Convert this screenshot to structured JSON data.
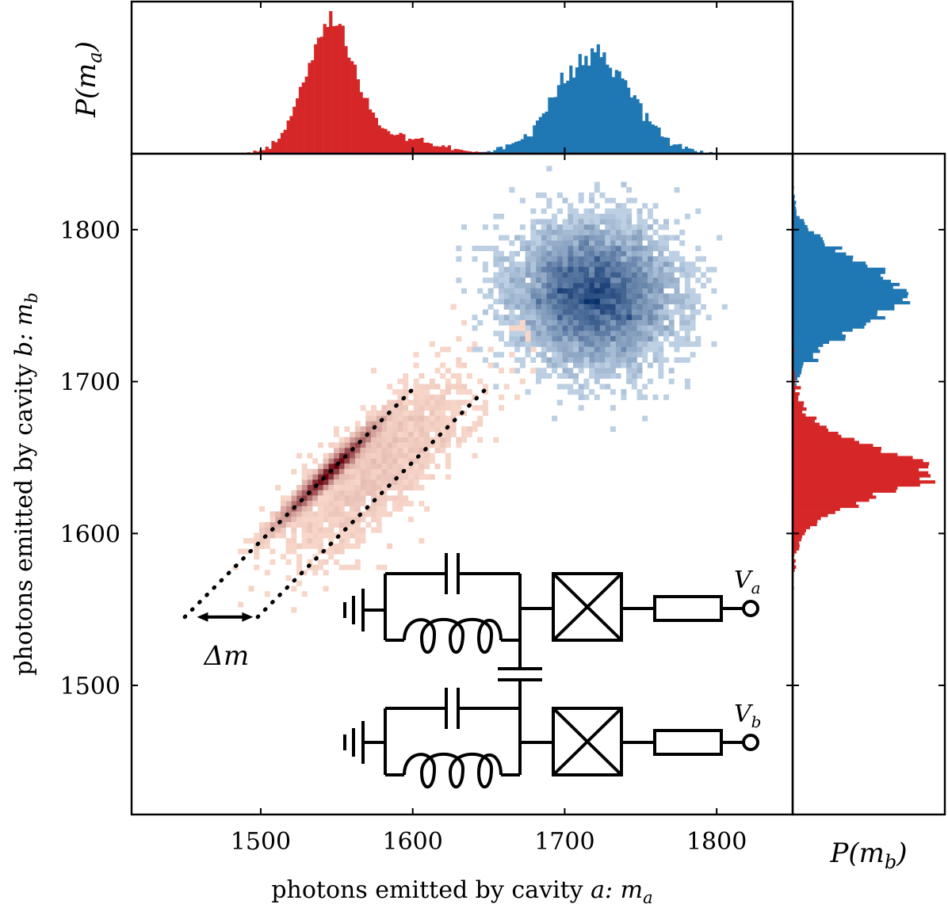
{
  "chart_data": {
    "type": "heatmap",
    "title": "",
    "xlabel": "photons emitted by cavity ",
    "xlabel_math": "a: m",
    "xlabel_sub": "a",
    "ylabel": "photons emitted by cavity ",
    "ylabel_math": "b: m",
    "ylabel_sub": "b",
    "xlim": [
      1415,
      1850
    ],
    "ylim": [
      1415,
      1850
    ],
    "xticks": [
      1500,
      1600,
      1700,
      1800
    ],
    "yticks": [
      1500,
      1600,
      1700,
      1800
    ],
    "series": [
      {
        "name": "red",
        "color": "#d62728",
        "cmap": "Reds",
        "component": "correlated",
        "mean_a": 1545,
        "mean_b": 1640,
        "sd_along": 22,
        "sd_across": 2.6,
        "diagonal_slope": 1.0,
        "weight": 0.78
      },
      {
        "name": "red",
        "color": "#d62728",
        "cmap": "Reds",
        "component": "tail",
        "mean_a": 1580,
        "mean_b": 1645,
        "sd_along": 40,
        "sd_across": 14,
        "weight": 0.22
      },
      {
        "name": "blue",
        "color": "#1f77b4",
        "cmap": "Blues",
        "component": "uncorrelated",
        "mean_a": 1720,
        "mean_b": 1757,
        "sd_a": 25,
        "sd_b": 22,
        "weight": 1.0
      }
    ],
    "top_hist": {
      "ylabel": "P(m",
      "ylabel_sub": "a",
      "ylabel_close": ")",
      "red_peak": 1540,
      "blue_peak": 1722
    },
    "right_hist": {
      "xlabel": "P(m",
      "xlabel_sub": "b",
      "xlabel_close": ")",
      "red_peak": 1640,
      "blue_peak": 1757
    },
    "dotted_lines": [
      {
        "from": [
          1450,
          1545
        ],
        "to": [
          1600,
          1695
        ]
      },
      {
        "from": [
          1498,
          1545
        ],
        "to": [
          1648,
          1695
        ]
      }
    ],
    "annotation": {
      "label": "Δm",
      "from": [
        1458,
        1545
      ],
      "to": [
        1495,
        1545
      ]
    },
    "circuit": {
      "port_a_label": "V",
      "port_a_sub": "a",
      "port_b_label": "V",
      "port_b_sub": "b"
    }
  }
}
